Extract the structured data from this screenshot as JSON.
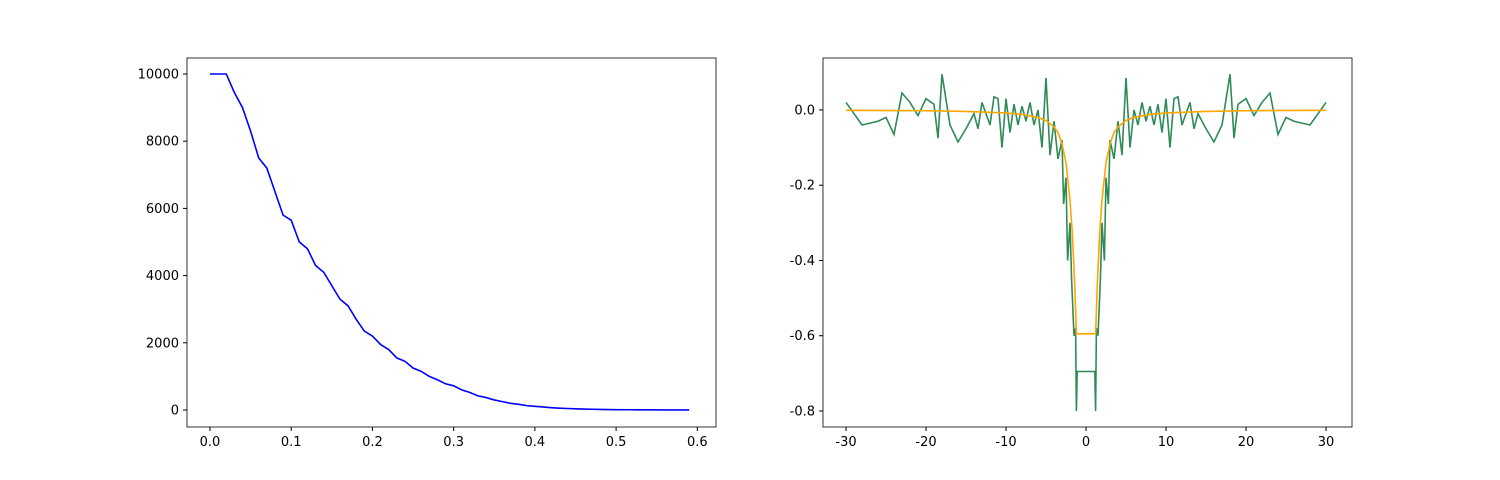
{
  "chart_data": [
    {
      "type": "line",
      "x": [
        0,
        0.01,
        0.02,
        0.03,
        0.04,
        0.05,
        0.06,
        0.07,
        0.08,
        0.09,
        0.1,
        0.11,
        0.12,
        0.13,
        0.14,
        0.15,
        0.16,
        0.17,
        0.18,
        0.19,
        0.2,
        0.21,
        0.22,
        0.23,
        0.24,
        0.25,
        0.26,
        0.27,
        0.28,
        0.29,
        0.3,
        0.31,
        0.32,
        0.33,
        0.34,
        0.35,
        0.36,
        0.37,
        0.38,
        0.39,
        0.4,
        0.41,
        0.42,
        0.43,
        0.44,
        0.45,
        0.46,
        0.47,
        0.48,
        0.49,
        0.5,
        0.52,
        0.54,
        0.56,
        0.58,
        0.59
      ],
      "series": [
        {
          "color": "#0000ff",
          "values": [
            10000,
            10000,
            10000,
            9450,
            9000,
            8300,
            7500,
            7200,
            6500,
            5800,
            5650,
            5000,
            4800,
            4300,
            4100,
            3700,
            3300,
            3100,
            2700,
            2350,
            2200,
            1950,
            1800,
            1550,
            1450,
            1250,
            1150,
            1000,
            900,
            780,
            720,
            600,
            520,
            420,
            370,
            300,
            250,
            200,
            170,
            130,
            110,
            90,
            70,
            55,
            45,
            35,
            28,
            22,
            17,
            13,
            10,
            7,
            5,
            3,
            2,
            2
          ]
        }
      ],
      "xlim": [
        -0.0283,
        0.623
      ],
      "ylim": [
        -506,
        10476
      ],
      "xticks": [
        {
          "value": 0,
          "label": "0.0"
        },
        0.1,
        0.2,
        0.3,
        0.4,
        0.5,
        0.6
      ],
      "yticks": [
        0,
        2000,
        4000,
        6000,
        8000,
        10000
      ]
    },
    {
      "type": "line",
      "series": [
        {
          "color": "#2e8b57",
          "x": [
            -30,
            -28,
            -26,
            -25,
            -24,
            -23,
            -22,
            -21,
            -20,
            -19,
            -18.5,
            -18,
            -17,
            -16,
            -15,
            -14,
            -13.5,
            -13,
            -12,
            -11.5,
            -11,
            -10.5,
            -10,
            -9.5,
            -9,
            -8.5,
            -8,
            -7.5,
            -7,
            -6.5,
            -6,
            -5.5,
            -5,
            -4.5,
            -4,
            -3.5,
            -3,
            -2.8,
            -2.5,
            -2.3,
            -2,
            -1.8,
            -1.5,
            -1.3,
            -1.2,
            -1.1,
            0,
            1.1,
            1.2,
            1.3,
            1.5,
            1.8,
            2,
            2.3,
            2.5,
            2.8,
            3,
            3.5,
            4,
            4.5,
            5,
            5.5,
            6,
            6.5,
            7,
            7.5,
            8,
            8.5,
            9,
            9.5,
            10,
            10.5,
            11,
            11.5,
            12,
            13,
            13.5,
            14,
            15,
            16,
            17,
            18,
            18.5,
            19,
            20,
            21,
            22,
            23,
            24,
            25,
            26,
            28,
            30
          ],
          "values": [
            0.02,
            -0.04,
            -0.03,
            -0.02,
            -0.065,
            0.045,
            0.02,
            -0.015,
            0.03,
            0.015,
            -0.075,
            0.095,
            -0.04,
            -0.085,
            -0.05,
            -0.01,
            -0.05,
            0.02,
            -0.04,
            0.035,
            0.03,
            -0.1,
            0.03,
            -0.06,
            0.015,
            -0.04,
            0.01,
            -0.03,
            0.02,
            -0.04,
            0.0,
            -0.1,
            0.085,
            -0.12,
            -0.03,
            -0.13,
            -0.08,
            -0.25,
            -0.18,
            -0.4,
            -0.3,
            -0.45,
            -0.6,
            -0.58,
            -0.8,
            -0.695,
            -0.695,
            -0.695,
            -0.8,
            -0.58,
            -0.6,
            -0.45,
            -0.3,
            -0.4,
            -0.18,
            -0.25,
            -0.08,
            -0.13,
            -0.03,
            -0.12,
            0.085,
            -0.1,
            0.0,
            -0.04,
            0.02,
            -0.03,
            0.01,
            -0.04,
            0.015,
            -0.06,
            0.03,
            -0.1,
            0.03,
            0.035,
            -0.04,
            0.02,
            -0.05,
            -0.01,
            -0.05,
            -0.085,
            -0.04,
            0.095,
            -0.075,
            0.015,
            0.03,
            -0.015,
            0.02,
            0.045,
            -0.065,
            -0.02,
            -0.03,
            -0.04,
            0.02
          ]
        },
        {
          "color": "#ffa500",
          "x": [
            -30,
            -20,
            -15,
            -10,
            -8,
            -6,
            -5,
            -4,
            -3.5,
            -3,
            -2.5,
            -2,
            -1.7,
            -1.4,
            -1.2,
            1.2,
            1.4,
            1.7,
            2,
            2.5,
            3,
            3.5,
            4,
            5,
            6,
            8,
            10,
            15,
            20,
            30
          ],
          "values": [
            -0.001,
            -0.002,
            -0.004,
            -0.008,
            -0.012,
            -0.02,
            -0.028,
            -0.045,
            -0.06,
            -0.09,
            -0.14,
            -0.24,
            -0.33,
            -0.47,
            -0.595,
            -0.595,
            -0.47,
            -0.33,
            -0.24,
            -0.14,
            -0.09,
            -0.06,
            -0.045,
            -0.028,
            -0.02,
            -0.012,
            -0.008,
            -0.004,
            -0.002,
            -0.001
          ]
        }
      ],
      "xlim": [
        -32.875,
        33.25
      ],
      "ylim": [
        -0.8425,
        0.138
      ],
      "xticks": [
        -30,
        -20,
        -10,
        0,
        10,
        20,
        30
      ],
      "yticks": [
        -0.8,
        -0.6,
        -0.4,
        -0.2,
        {
          "value": 0,
          "label": "0.0"
        }
      ]
    }
  ]
}
